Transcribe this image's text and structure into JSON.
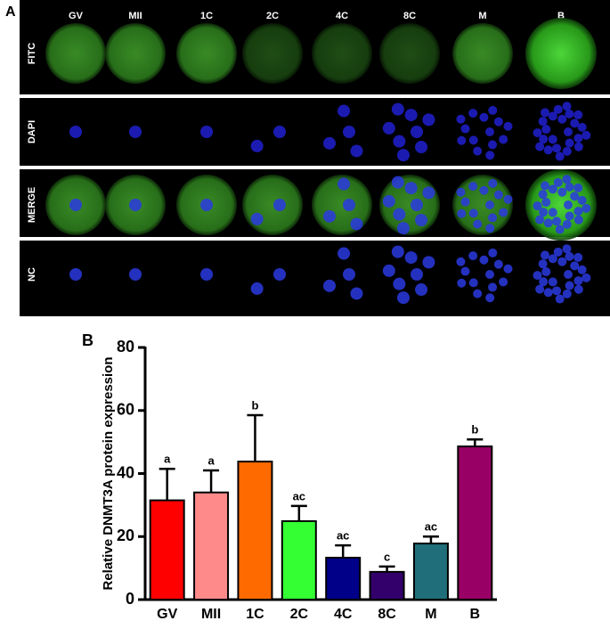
{
  "panel_a": {
    "label": "A",
    "columns": [
      "GV",
      "MII",
      "1C",
      "2C",
      "4C",
      "8C",
      "M",
      "B"
    ],
    "rows": [
      "FITC",
      "DAPI",
      "MERGE",
      "NC"
    ]
  },
  "chart_data": {
    "type": "bar",
    "panel_label": "B",
    "y_label": "Relative DNMT3A protein expression",
    "categories": [
      "GV",
      "MII",
      "1C",
      "2C",
      "4C",
      "8C",
      "M",
      "B"
    ],
    "values": [
      31.5,
      34,
      43.8,
      24.9,
      13.3,
      8.8,
      17.8,
      48.6
    ],
    "errors": [
      10,
      7,
      14.7,
      4.8,
      3.9,
      1.7,
      2.2,
      2.2
    ],
    "annotations": [
      "a",
      "a",
      "b",
      "ac",
      "ac",
      "c",
      "ac",
      "b"
    ],
    "colors": [
      "#ff0000",
      "#ff8a8a",
      "#ff6a00",
      "#33ff33",
      "#000088",
      "#33006b",
      "#1f6e7a",
      "#990066"
    ],
    "ylim": [
      0,
      80
    ],
    "yticks": [
      0,
      20,
      40,
      60,
      80
    ]
  }
}
